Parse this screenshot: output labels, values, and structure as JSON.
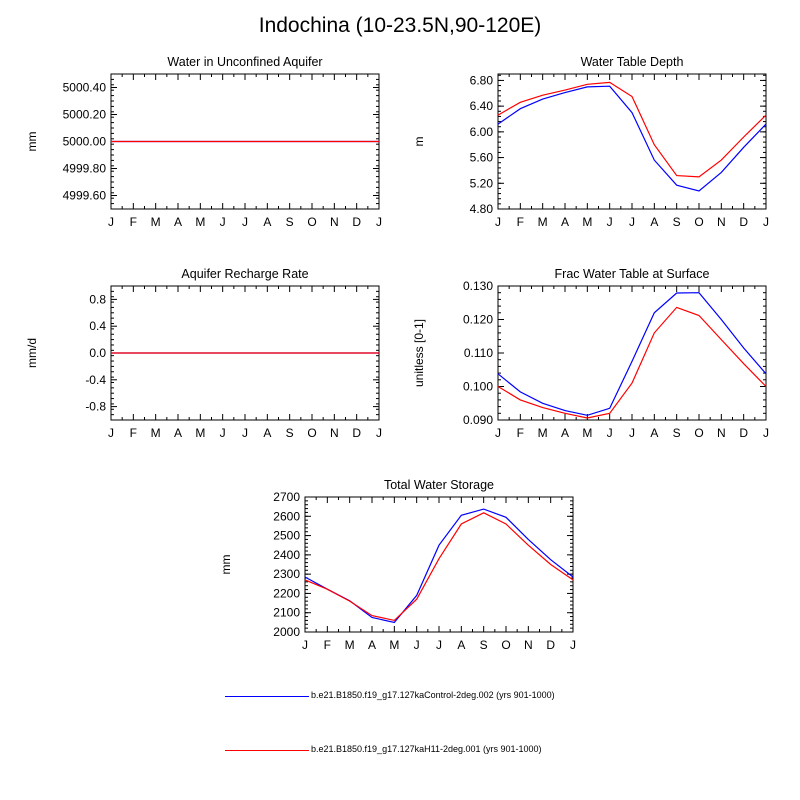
{
  "figure_title": "Indochina (10-23.5N,90-120E)",
  "colors": {
    "control": "#0000ff",
    "experiment": "#ff0000",
    "axis": "#000000"
  },
  "legend": [
    {
      "label": "b.e21.B1850.f19_g17.127kaControl-2deg.002 (yrs 901-1000)",
      "color": "#0000ff"
    },
    {
      "label": "b.e21.B1850.f19_g17.127kaH11-2deg.001 (yrs 901-1000)",
      "color": "#ff0000"
    }
  ],
  "chart_data": [
    {
      "type": "line",
      "title": "Water in Unconfined Aquifer",
      "ylabel": "mm",
      "categories": [
        "J",
        "F",
        "M",
        "A",
        "M",
        "J",
        "J",
        "A",
        "S",
        "O",
        "N",
        "D",
        "J"
      ],
      "ylim": [
        4999.5,
        5000.5
      ],
      "yticks": [
        4999.6,
        4999.8,
        5000.0,
        5000.2,
        5000.4
      ],
      "ytick_labels": [
        "4999.60",
        "4999.80",
        "5000.00",
        "5000.20",
        "5000.40"
      ],
      "series": [
        {
          "values": [
            5000,
            5000,
            5000,
            5000,
            5000,
            5000,
            5000,
            5000,
            5000,
            5000,
            5000,
            5000,
            5000
          ],
          "color": "#0000ff"
        },
        {
          "values": [
            5000,
            5000,
            5000,
            5000,
            5000,
            5000,
            5000,
            5000,
            5000,
            5000,
            5000,
            5000,
            5000
          ],
          "color": "#ff0000"
        }
      ]
    },
    {
      "type": "line",
      "title": "Water Table Depth",
      "ylabel": "m",
      "categories": [
        "J",
        "F",
        "M",
        "A",
        "M",
        "J",
        "J",
        "A",
        "S",
        "O",
        "N",
        "D",
        "J"
      ],
      "ylim": [
        4.8,
        6.9
      ],
      "yticks": [
        4.8,
        5.2,
        5.6,
        6.0,
        6.4,
        6.8
      ],
      "ytick_labels": [
        "4.80",
        "5.20",
        "5.60",
        "6.00",
        "6.40",
        "6.80"
      ],
      "series": [
        {
          "values": [
            6.12,
            6.36,
            6.51,
            6.61,
            6.7,
            6.71,
            6.3,
            5.56,
            5.17,
            5.08,
            5.37,
            5.76,
            6.12
          ],
          "color": "#0000ff"
        },
        {
          "values": [
            6.26,
            6.46,
            6.57,
            6.65,
            6.74,
            6.77,
            6.55,
            5.8,
            5.32,
            5.3,
            5.56,
            5.92,
            6.26
          ],
          "color": "#ff0000"
        }
      ]
    },
    {
      "type": "line",
      "title": "Aquifer Recharge Rate",
      "ylabel": "mm/d",
      "categories": [
        "J",
        "F",
        "M",
        "A",
        "M",
        "J",
        "J",
        "A",
        "S",
        "O",
        "N",
        "D",
        "J"
      ],
      "ylim": [
        -1.0,
        1.0
      ],
      "yticks": [
        -0.8,
        -0.4,
        0.0,
        0.4,
        0.8
      ],
      "ytick_labels": [
        "-0.8",
        "-0.4",
        "0.0",
        "0.4",
        "0.8"
      ],
      "series": [
        {
          "values": [
            0,
            0,
            0,
            0,
            0,
            0,
            0,
            0,
            0,
            0,
            0,
            0,
            0
          ],
          "color": "#0000ff"
        },
        {
          "values": [
            0,
            0,
            0,
            0,
            0,
            0,
            0,
            0,
            0,
            0,
            0,
            0,
            0
          ],
          "color": "#ff0000"
        }
      ]
    },
    {
      "type": "line",
      "title": "Frac Water Table at Surface",
      "ylabel": "unitless [0-1]",
      "categories": [
        "J",
        "F",
        "M",
        "A",
        "M",
        "J",
        "J",
        "A",
        "S",
        "O",
        "N",
        "D",
        "J"
      ],
      "ylim": [
        0.09,
        0.13
      ],
      "yticks": [
        0.09,
        0.1,
        0.11,
        0.12,
        0.13
      ],
      "ytick_labels": [
        "0.090",
        "0.100",
        "0.110",
        "0.120",
        "0.130"
      ],
      "series": [
        {
          "values": [
            0.1038,
            0.0984,
            0.095,
            0.0928,
            0.0914,
            0.0935,
            0.1075,
            0.122,
            0.1279,
            0.128,
            0.12,
            0.1115,
            0.1038
          ],
          "color": "#0000ff"
        },
        {
          "values": [
            0.1,
            0.096,
            0.0937,
            0.092,
            0.0906,
            0.092,
            0.101,
            0.116,
            0.1236,
            0.1212,
            0.114,
            0.1068,
            0.1
          ],
          "color": "#ff0000"
        }
      ]
    },
    {
      "type": "line",
      "title": "Total Water Storage",
      "ylabel": "mm",
      "categories": [
        "J",
        "F",
        "M",
        "A",
        "M",
        "J",
        "J",
        "A",
        "S",
        "O",
        "N",
        "D",
        "J"
      ],
      "ylim": [
        2000,
        2700
      ],
      "yticks": [
        2000,
        2100,
        2200,
        2300,
        2400,
        2500,
        2600,
        2700
      ],
      "ytick_labels": [
        "2000",
        "2100",
        "2200",
        "2300",
        "2400",
        "2500",
        "2600",
        "2700"
      ],
      "series": [
        {
          "values": [
            2285,
            2222,
            2162,
            2075,
            2050,
            2190,
            2450,
            2605,
            2637,
            2595,
            2480,
            2375,
            2285
          ],
          "color": "#0000ff"
        },
        {
          "values": [
            2270,
            2222,
            2160,
            2085,
            2060,
            2170,
            2380,
            2560,
            2618,
            2560,
            2450,
            2350,
            2270
          ],
          "color": "#ff0000"
        }
      ]
    }
  ]
}
